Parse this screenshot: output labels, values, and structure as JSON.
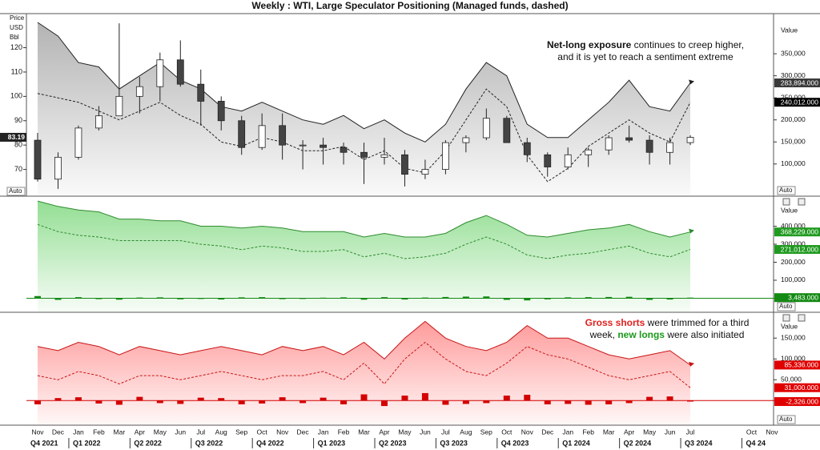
{
  "title": "Weekly : WTI, Large Speculator Positioning (Managed funds, dashed)",
  "categories": [
    "Nov",
    "Dec",
    "Jan",
    "Feb",
    "Mar",
    "Apr",
    "May",
    "Jun",
    "Jul",
    "Aug",
    "Sep",
    "Oct",
    "Nov",
    "Dec",
    "Jan",
    "Feb",
    "Mar",
    "Apr",
    "May",
    "Jun",
    "Jul",
    "Aug",
    "Sep",
    "Oct",
    "Nov",
    "Dec",
    "Jan",
    "Feb",
    "Mar",
    "Apr",
    "May",
    "Jun",
    "Jul",
    null,
    null,
    "Oct",
    "Nov"
  ],
  "quarters": [
    "Q4 2021",
    "Q1 2022",
    "Q2 2022",
    "Q3 2022",
    "Q4 2022",
    "Q1 2023",
    "Q2 2023",
    "Q3 2023",
    "Q4 2023",
    "Q1 2024",
    "Q2 2024",
    "Q3 2024",
    "Q4 24"
  ],
  "chart_data": [
    {
      "type": "candlestick",
      "y_label": [
        "Price",
        "USD",
        "Bbl"
      ],
      "y_scale_mode": "Auto",
      "y2_label": "Value",
      "scale_mode": "Auto",
      "ylim": [
        59,
        134
      ],
      "yticks": [
        70,
        80,
        90,
        100,
        110,
        120
      ],
      "last_price": 83.19,
      "y2lim": [
        27000,
        441000
      ],
      "y2ticks": [
        {
          "value": 100000,
          "label": "100,000"
        },
        {
          "value": 150000,
          "label": "150,000"
        },
        {
          "value": 200000,
          "label": "200,000"
        },
        {
          "value": 250000,
          "label": "250,000"
        },
        {
          "value": 300000,
          "label": "300,000"
        },
        {
          "value": 350000,
          "label": "350,000"
        }
      ],
      "candles": {
        "open": [
          82,
          66,
          75,
          87,
          92,
          100,
          104,
          115,
          105,
          98,
          90,
          79,
          88,
          80,
          80,
          79,
          77,
          75,
          76,
          68,
          70,
          81,
          83,
          91,
          81,
          76,
          71,
          76,
          78,
          83,
          82,
          77,
          81,
          null,
          null,
          null,
          null
        ],
        "high": [
          85,
          77,
          88,
          96,
          130,
          108,
          118,
          123,
          111,
          100,
          92,
          93,
          93,
          82,
          83,
          81,
          81,
          83,
          78,
          74,
          82,
          84,
          95,
          92,
          83,
          77,
          79,
          79,
          84,
          88,
          84,
          83,
          84,
          null,
          null,
          null,
          null
        ],
        "low": [
          65,
          62,
          74,
          86,
          92,
          93,
          98,
          104,
          88,
          86,
          76,
          78,
          74,
          70,
          72,
          72,
          64,
          72,
          63,
          66,
          68,
          77,
          82,
          81,
          73,
          67,
          70,
          71,
          76,
          81,
          72,
          72,
          80,
          null,
          null,
          null,
          null
        ],
        "close": [
          66,
          75,
          87,
          92,
          100,
          104,
          115,
          105,
          98,
          90,
          79,
          88,
          80,
          80,
          79,
          77,
          75,
          76,
          68,
          70,
          81,
          83,
          91,
          81,
          76,
          71,
          76,
          78,
          83,
          82,
          77,
          81,
          83.19,
          null,
          null,
          null,
          null
        ]
      },
      "annotation": [
        [
          {
            "text": "Net-long exposure",
            "bold": true
          },
          {
            "text": " continues to creep higher,"
          }
        ],
        [
          {
            "text": "and it is yet to reach a sentiment extreme"
          }
        ]
      ],
      "series": [
        {
          "axis": "y2",
          "color": "#222222",
          "dashed": false,
          "fill": "#9a9a9a",
          "label_color": "#3a3a3a",
          "last_label": "283,894.000",
          "values": [
            421000,
            390000,
            330000,
            320000,
            270000,
            300000,
            330000,
            290000,
            270000,
            230000,
            220000,
            240000,
            220000,
            200000,
            190000,
            210000,
            180000,
            200000,
            170000,
            150000,
            190000,
            270000,
            330000,
            300000,
            190000,
            160000,
            160000,
            200000,
            240000,
            290000,
            230000,
            220000,
            283894,
            null,
            null,
            null,
            null
          ]
        },
        {
          "axis": "y2",
          "color": "#222222",
          "dashed": true,
          "fill": null,
          "label_color": "#000000",
          "last_label": "240,012.000",
          "values": [
            260000,
            250000,
            240000,
            220000,
            200000,
            220000,
            240000,
            210000,
            190000,
            150000,
            140000,
            160000,
            150000,
            130000,
            130000,
            140000,
            110000,
            130000,
            90000,
            80000,
            130000,
            200000,
            270000,
            230000,
            120000,
            60000,
            90000,
            140000,
            170000,
            200000,
            170000,
            150000,
            240012,
            null,
            null,
            null,
            null
          ]
        }
      ]
    },
    {
      "type": "line",
      "y2_label": "Value",
      "scale_mode": "Auto",
      "y2lim": [
        -78000,
        567000
      ],
      "y2ticks": [
        {
          "value": 100000,
          "label": "100,000"
        },
        {
          "value": 200000,
          "label": "200,000"
        },
        {
          "value": 300000,
          "label": "300,000"
        },
        {
          "value": 400000,
          "label": "400,000"
        }
      ],
      "series": [
        {
          "axis": "y2",
          "color": "#2e8b2e",
          "dashed": false,
          "fill": "#6fd36f",
          "label_color": "#1f9a1f",
          "last_label": "368,229.000",
          "values": [
            540000,
            510000,
            490000,
            480000,
            440000,
            440000,
            430000,
            430000,
            400000,
            400000,
            390000,
            400000,
            390000,
            370000,
            370000,
            370000,
            340000,
            360000,
            340000,
            340000,
            360000,
            420000,
            460000,
            410000,
            350000,
            340000,
            360000,
            380000,
            390000,
            410000,
            370000,
            340000,
            368229,
            null,
            null,
            null,
            null
          ]
        },
        {
          "axis": "y2",
          "color": "#2e8b2e",
          "dashed": true,
          "fill": null,
          "label_color": "#1f9a1f",
          "last_label": "271,012.000",
          "values": [
            410000,
            370000,
            350000,
            340000,
            320000,
            320000,
            320000,
            320000,
            300000,
            290000,
            270000,
            290000,
            280000,
            260000,
            260000,
            270000,
            230000,
            250000,
            220000,
            230000,
            250000,
            300000,
            340000,
            300000,
            240000,
            220000,
            240000,
            250000,
            270000,
            290000,
            250000,
            230000,
            271012,
            null,
            null,
            null,
            null
          ]
        }
      ],
      "bars": {
        "axis": "y2",
        "color": "#138a13",
        "label_color": "#138a13",
        "last_label": "3,483.000",
        "values": [
          12000,
          -9000,
          6000,
          -5000,
          -8000,
          4000,
          5000,
          -6000,
          -4000,
          -7000,
          5000,
          6000,
          -5000,
          -4000,
          3000,
          5000,
          -8000,
          6000,
          -7000,
          4000,
          7000,
          9000,
          10000,
          -9000,
          -12000,
          -6000,
          5000,
          6000,
          7000,
          8000,
          -9000,
          -7000,
          3483,
          null,
          null,
          null,
          null
        ]
      }
    },
    {
      "type": "line",
      "y2_label": "Value",
      "scale_mode": "Auto",
      "y2lim": [
        -59000,
        212000
      ],
      "y2ticks": [
        {
          "value": 50000,
          "label": "50,000"
        },
        {
          "value": 100000,
          "label": "100,000"
        },
        {
          "value": 150000,
          "label": "150,000"
        }
      ],
      "annotation": [
        [
          {
            "text": "Gross shorts",
            "bold": true,
            "color": "#e0201e"
          },
          {
            "text": " were trimmed for a third"
          }
        ],
        [
          {
            "text": "week, "
          },
          {
            "text": "new longs",
            "bold": true,
            "color": "#1a9a1a"
          },
          {
            "text": " were also initiated"
          }
        ]
      ],
      "series": [
        {
          "axis": "y2",
          "color": "#c81414",
          "dashed": false,
          "fill": "#ff7a7a",
          "label_color": "#e00000",
          "last_label": "85,336.000",
          "values": [
            130000,
            120000,
            140000,
            130000,
            110000,
            130000,
            120000,
            110000,
            120000,
            130000,
            120000,
            110000,
            130000,
            120000,
            130000,
            110000,
            140000,
            100000,
            150000,
            190000,
            150000,
            130000,
            120000,
            140000,
            180000,
            150000,
            150000,
            130000,
            110000,
            100000,
            110000,
            120000,
            85336,
            null,
            null,
            null,
            null
          ]
        },
        {
          "axis": "y2",
          "color": "#c81414",
          "dashed": true,
          "fill": null,
          "label_color": "#e00000",
          "last_label": "31,000.000",
          "values": [
            60000,
            50000,
            70000,
            60000,
            40000,
            60000,
            60000,
            50000,
            60000,
            70000,
            60000,
            50000,
            60000,
            60000,
            70000,
            50000,
            90000,
            40000,
            100000,
            140000,
            100000,
            70000,
            60000,
            90000,
            130000,
            110000,
            100000,
            80000,
            60000,
            50000,
            60000,
            70000,
            31000,
            null,
            null,
            null,
            null
          ]
        }
      ],
      "bars": {
        "axis": "y2",
        "color": "#d40000",
        "label_color": "#e00000",
        "last_label": "-2,326.000",
        "values": [
          -9000,
          6000,
          8000,
          -7000,
          -10000,
          9000,
          -6000,
          -8000,
          7000,
          6000,
          -9000,
          -7000,
          8000,
          -6000,
          7000,
          -9000,
          15000,
          -13000,
          12000,
          18000,
          -10000,
          -8000,
          -6000,
          12000,
          14000,
          -9000,
          -8000,
          -10000,
          -9000,
          -6000,
          9000,
          10000,
          -2326,
          null,
          null,
          null,
          null
        ]
      }
    }
  ]
}
